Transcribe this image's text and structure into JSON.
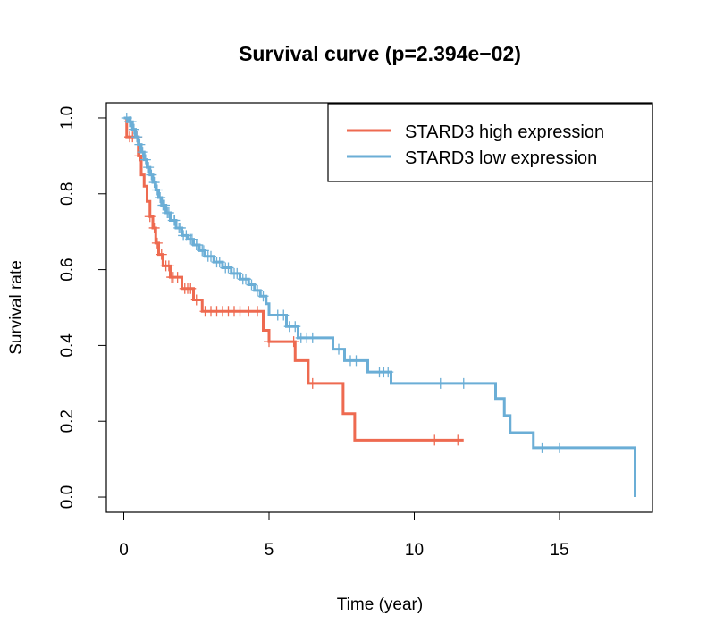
{
  "chart_data": {
    "type": "line",
    "title": "Survival curve (p=2.394e−02)",
    "xlabel": "Time (year)",
    "ylabel": "Survival rate",
    "xlim": [
      -0.6,
      18.2
    ],
    "ylim": [
      -0.04,
      1.04
    ],
    "xticks": [
      0,
      5,
      10,
      15
    ],
    "xtick_labels": [
      "0",
      "5",
      "10",
      "15"
    ],
    "yticks": [
      0.0,
      0.2,
      0.4,
      0.6,
      0.8,
      1.0
    ],
    "ytick_labels": [
      "0.0",
      "0.2",
      "0.4",
      "0.6",
      "0.8",
      "1.0"
    ],
    "legend_position": "top-right",
    "grid": false,
    "series": [
      {
        "name": "STARD3 high expression",
        "color": "#EE6A50",
        "steps": [
          [
            0,
            1.0
          ],
          [
            0.1,
            0.95
          ],
          [
            0.5,
            0.9
          ],
          [
            0.6,
            0.85
          ],
          [
            0.7,
            0.82
          ],
          [
            0.8,
            0.78
          ],
          [
            0.9,
            0.74
          ],
          [
            1.0,
            0.71
          ],
          [
            1.1,
            0.67
          ],
          [
            1.2,
            0.64
          ],
          [
            1.35,
            0.61
          ],
          [
            1.6,
            0.58
          ],
          [
            2.0,
            0.55
          ],
          [
            2.4,
            0.52
          ],
          [
            2.7,
            0.49
          ],
          [
            4.8,
            0.44
          ],
          [
            5.0,
            0.41
          ],
          [
            5.9,
            0.36
          ],
          [
            6.35,
            0.3
          ],
          [
            7.55,
            0.22
          ],
          [
            7.95,
            0.15
          ],
          [
            11.7,
            0.15
          ]
        ],
        "censor_times": [
          0.2,
          0.3,
          0.45,
          0.55,
          0.9,
          1.05,
          1.15,
          1.3,
          1.45,
          1.55,
          1.65,
          1.7,
          1.85,
          2.1,
          2.2,
          2.3,
          2.5,
          2.8,
          3.0,
          3.2,
          3.4,
          3.6,
          3.8,
          4.0,
          4.3,
          4.6,
          5.0,
          5.85,
          6.5,
          10.7,
          11.5
        ]
      },
      {
        "name": "STARD3 low expression",
        "color": "#6BAED6",
        "steps": [
          [
            0,
            1.0
          ],
          [
            0.15,
            0.99
          ],
          [
            0.3,
            0.97
          ],
          [
            0.4,
            0.95
          ],
          [
            0.5,
            0.93
          ],
          [
            0.6,
            0.91
          ],
          [
            0.7,
            0.89
          ],
          [
            0.8,
            0.87
          ],
          [
            0.9,
            0.85
          ],
          [
            1.0,
            0.83
          ],
          [
            1.1,
            0.81
          ],
          [
            1.2,
            0.79
          ],
          [
            1.3,
            0.77
          ],
          [
            1.45,
            0.75
          ],
          [
            1.6,
            0.73
          ],
          [
            1.8,
            0.71
          ],
          [
            2.0,
            0.69
          ],
          [
            2.2,
            0.68
          ],
          [
            2.4,
            0.665
          ],
          [
            2.6,
            0.65
          ],
          [
            2.8,
            0.635
          ],
          [
            3.1,
            0.62
          ],
          [
            3.4,
            0.605
          ],
          [
            3.7,
            0.59
          ],
          [
            4.0,
            0.575
          ],
          [
            4.3,
            0.56
          ],
          [
            4.5,
            0.545
          ],
          [
            4.7,
            0.53
          ],
          [
            4.9,
            0.51
          ],
          [
            5.0,
            0.48
          ],
          [
            5.6,
            0.45
          ],
          [
            6.0,
            0.42
          ],
          [
            7.2,
            0.39
          ],
          [
            7.6,
            0.36
          ],
          [
            8.4,
            0.33
          ],
          [
            9.2,
            0.3
          ],
          [
            12.8,
            0.26
          ],
          [
            13.1,
            0.215
          ],
          [
            13.3,
            0.17
          ],
          [
            14.1,
            0.13
          ],
          [
            17.6,
            0.0
          ]
        ],
        "censor_times": [
          0.1,
          0.2,
          0.25,
          0.35,
          0.45,
          0.55,
          0.65,
          0.75,
          0.85,
          0.95,
          1.05,
          1.15,
          1.25,
          1.35,
          1.4,
          1.5,
          1.55,
          1.7,
          1.75,
          1.9,
          1.95,
          2.05,
          2.15,
          2.3,
          2.35,
          2.5,
          2.55,
          2.7,
          2.75,
          2.9,
          3.0,
          3.2,
          3.3,
          3.5,
          3.6,
          3.8,
          3.9,
          4.1,
          4.2,
          4.4,
          4.6,
          4.8,
          5.3,
          5.5,
          5.7,
          5.9,
          6.1,
          6.3,
          6.5,
          7.4,
          7.8,
          8.0,
          8.8,
          8.95,
          9.1,
          10.9,
          11.7,
          14.4,
          15.0
        ]
      }
    ]
  }
}
